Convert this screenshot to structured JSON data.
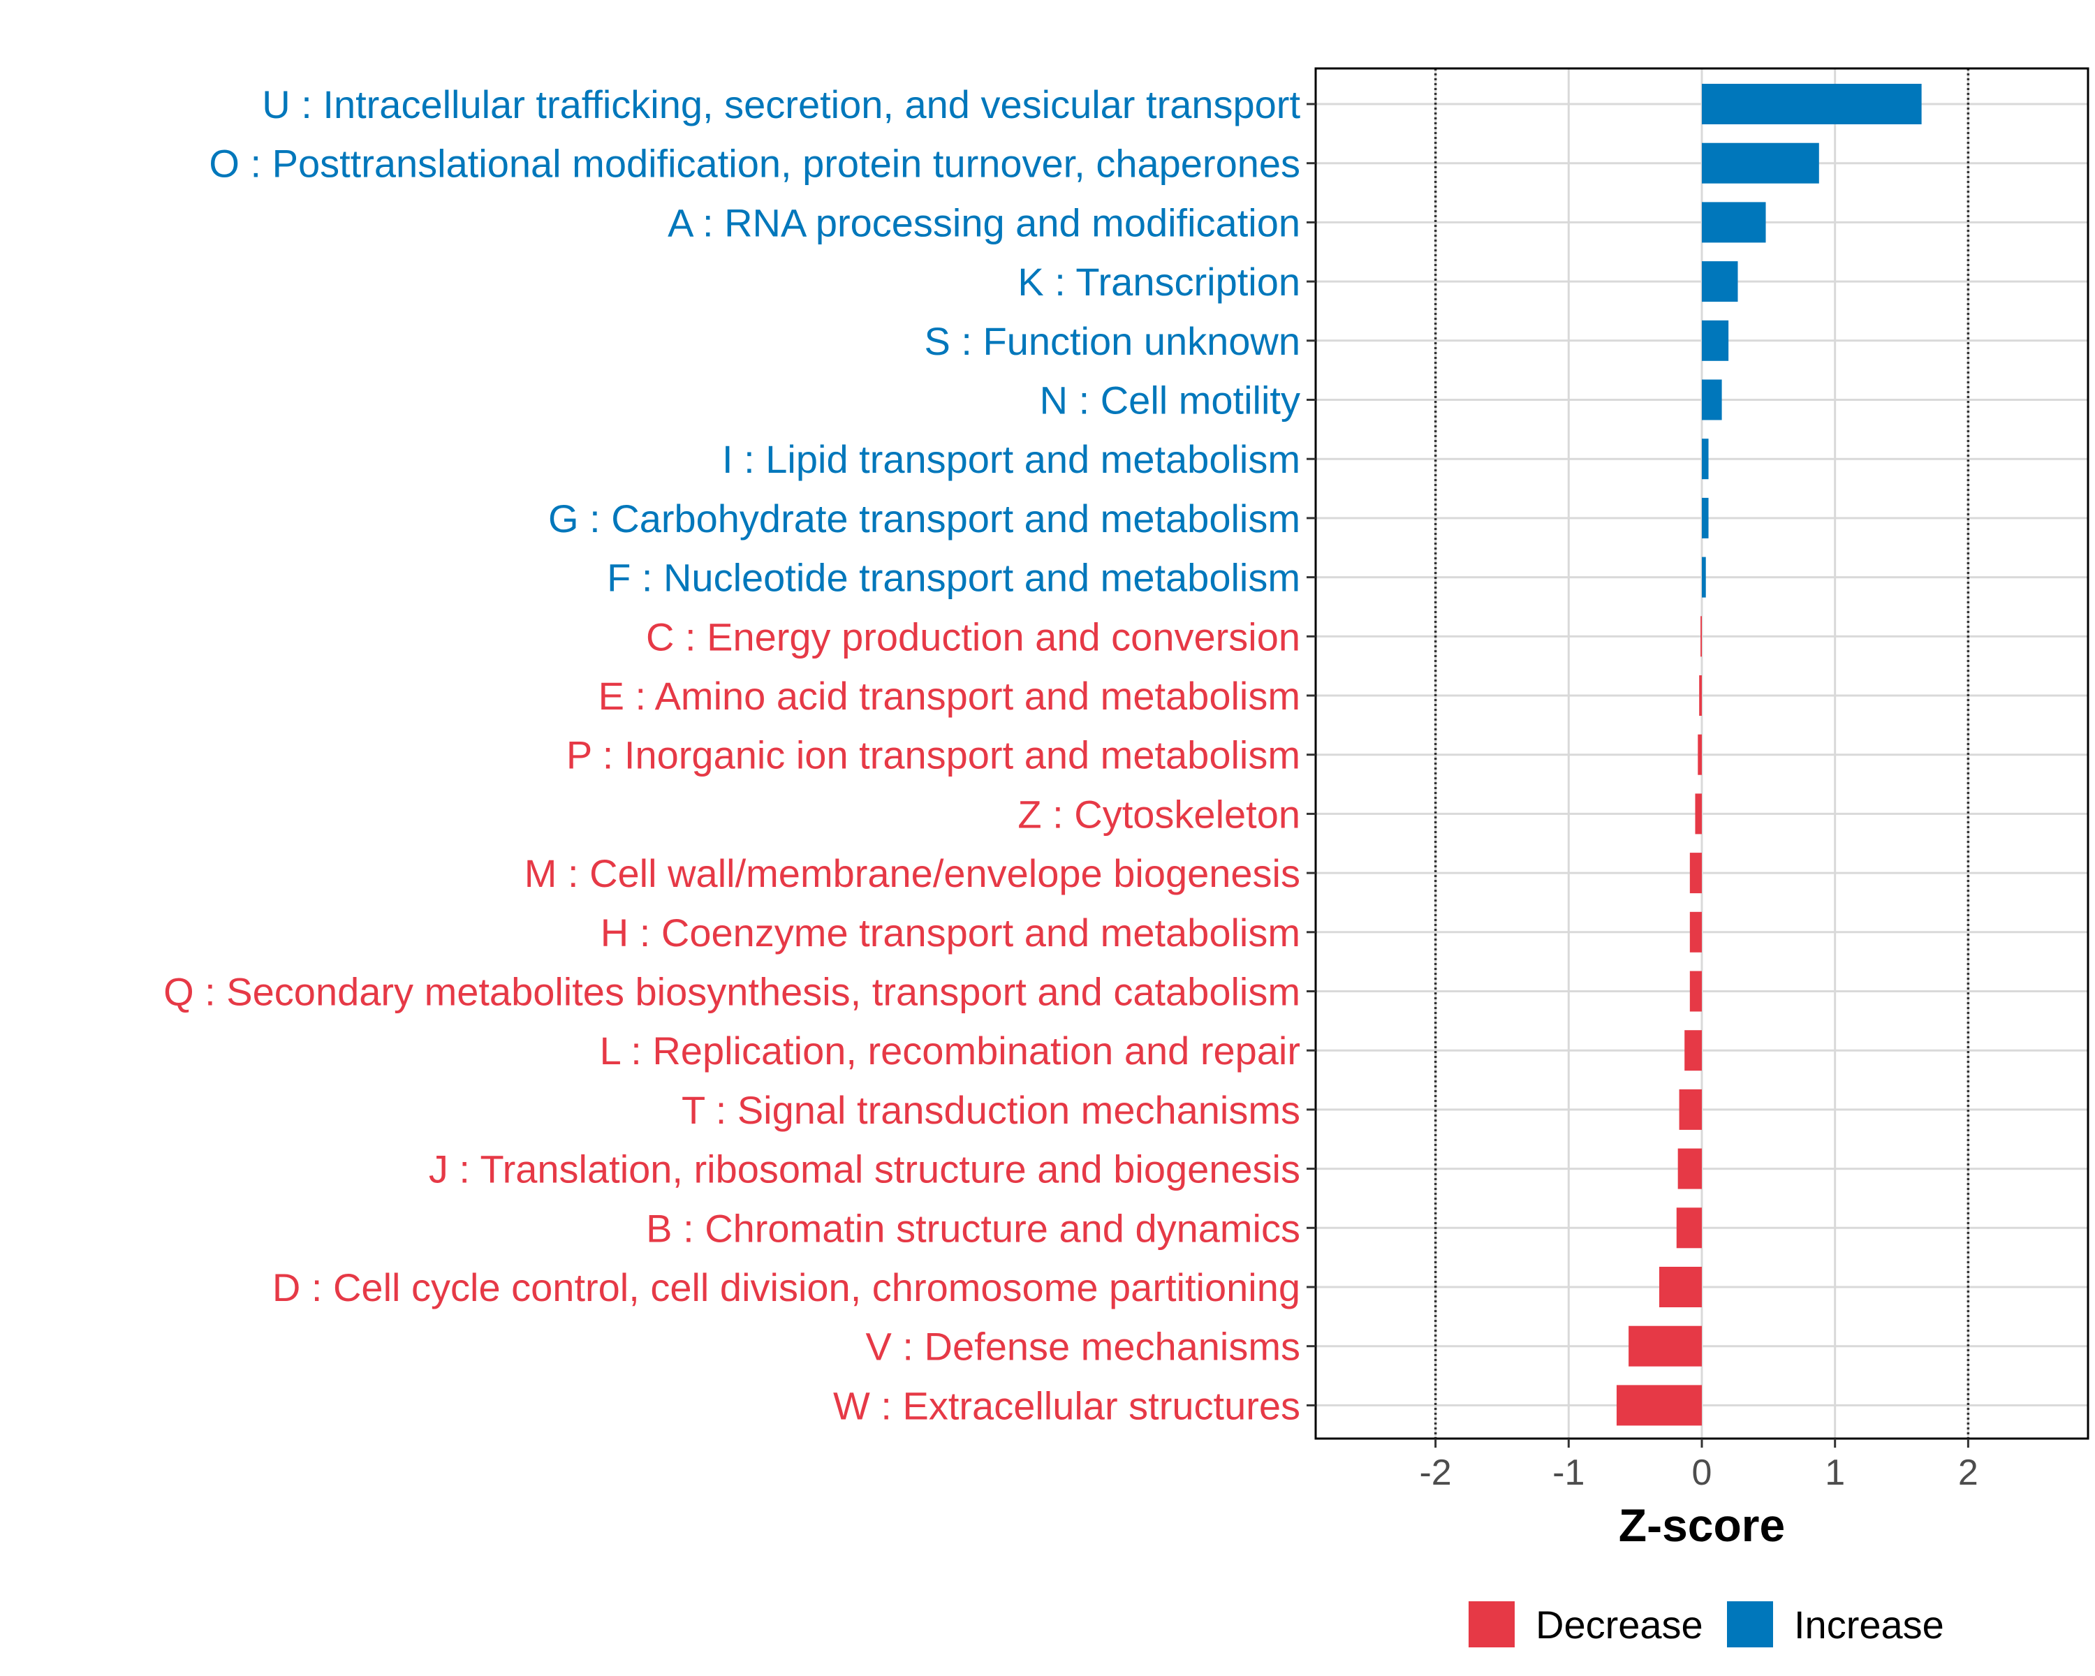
{
  "chart_data": {
    "type": "bar",
    "orientation": "horizontal",
    "xlabel": "Z-score",
    "ylabel": "",
    "xlim": [
      -2.9,
      2.9
    ],
    "xticks": [
      -2,
      -1,
      0,
      1,
      2
    ],
    "xtick_labels": [
      "-2",
      "-1",
      "0",
      "1",
      "2"
    ],
    "reference_lines": [
      -2,
      2
    ],
    "grid": true,
    "colors": {
      "Increase": "#0077bb",
      "Decrease": "#e63946"
    },
    "legend": {
      "position": "bottom",
      "entries": [
        {
          "name": "Decrease",
          "color": "#e63946"
        },
        {
          "name": "Increase",
          "color": "#0077bb"
        }
      ]
    },
    "categories": [
      "U : Intracellular trafficking, secretion, and vesicular transport",
      "O : Posttranslational modification, protein turnover, chaperones",
      "A : RNA processing and modification",
      "K : Transcription",
      "S : Function unknown",
      "N : Cell motility",
      "I : Lipid transport and metabolism",
      "G : Carbohydrate transport and metabolism",
      "F : Nucleotide transport and metabolism",
      "C : Energy production and conversion",
      "E : Amino acid transport and metabolism",
      "P : Inorganic ion transport and metabolism",
      "Z : Cytoskeleton",
      "M : Cell wall/membrane/envelope biogenesis",
      "H : Coenzyme transport and metabolism",
      "Q : Secondary metabolites biosynthesis, transport and catabolism",
      "L : Replication, recombination and repair",
      "T : Signal transduction mechanisms",
      "J : Translation, ribosomal structure and biogenesis",
      "B : Chromatin structure and dynamics",
      "D : Cell cycle control, cell division, chromosome partitioning",
      "V : Defense mechanisms",
      "W : Extracellular structures"
    ],
    "values": [
      1.65,
      0.88,
      0.48,
      0.27,
      0.2,
      0.15,
      0.05,
      0.05,
      0.03,
      -0.01,
      -0.02,
      -0.03,
      -0.05,
      -0.09,
      -0.09,
      -0.09,
      -0.13,
      -0.17,
      -0.18,
      -0.19,
      -0.32,
      -0.55,
      -0.64
    ],
    "groups": [
      "Increase",
      "Increase",
      "Increase",
      "Increase",
      "Increase",
      "Increase",
      "Increase",
      "Increase",
      "Increase",
      "Decrease",
      "Decrease",
      "Decrease",
      "Decrease",
      "Decrease",
      "Decrease",
      "Decrease",
      "Decrease",
      "Decrease",
      "Decrease",
      "Decrease",
      "Decrease",
      "Decrease",
      "Decrease"
    ]
  }
}
